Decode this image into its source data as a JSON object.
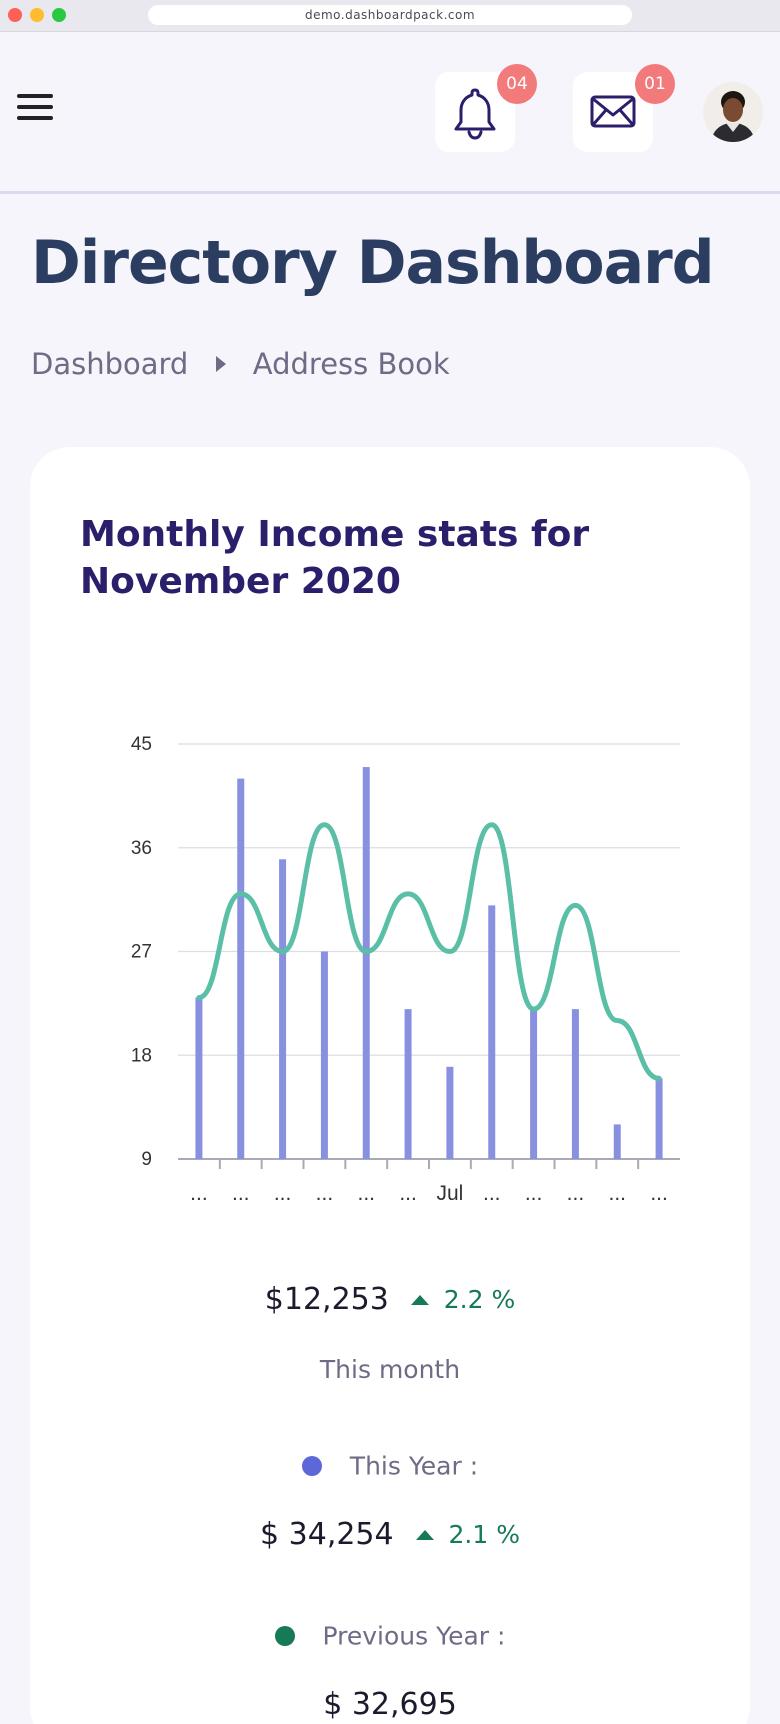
{
  "browser": {
    "url": "demo.dashboardpack.com"
  },
  "header": {
    "notifications_badge": "04",
    "messages_badge": "01"
  },
  "page": {
    "title": "Directory Dashboard",
    "breadcrumb": [
      "Dashboard",
      "Address Book"
    ]
  },
  "card": {
    "title": "Monthly Income stats for November 2020",
    "this_month_amount": "$12,253",
    "this_month_change": "2.2 %",
    "this_month_label": "This month",
    "this_year_label": "This Year :",
    "this_year_amount": "$ 34,254",
    "this_year_change": "2.1 %",
    "previous_year_label": "Previous Year :",
    "previous_year_amount": "$ 32,695"
  },
  "colors": {
    "bar": "#8891e0",
    "line": "#5bbfa8",
    "this_year_dot": "#5c67d9",
    "previous_year_dot": "#157a55",
    "positive": "#157a55",
    "title": "#2b3e62",
    "badge": "#f37a7a"
  },
  "chart_data": {
    "type": "bar",
    "categories": [
      "...",
      "...",
      "...",
      "...",
      "...",
      "...",
      "Jul",
      "...",
      "...",
      "...",
      "...",
      "..."
    ],
    "x_tick_labels": [
      "...",
      "...",
      "...",
      "...",
      "...",
      "...",
      "Jul",
      "...",
      "...",
      "...",
      "...",
      "..."
    ],
    "y_ticks": [
      9,
      18,
      27,
      36,
      45
    ],
    "ylim": [
      9,
      45
    ],
    "grid": true,
    "series": [
      {
        "type": "bar",
        "values": [
          23,
          42,
          35,
          27,
          43,
          22,
          17,
          31,
          22,
          22,
          12,
          16
        ]
      },
      {
        "type": "line",
        "smooth": true,
        "values": [
          23,
          32,
          27,
          38,
          27,
          32,
          27,
          38,
          22,
          31,
          21,
          16
        ]
      }
    ]
  }
}
